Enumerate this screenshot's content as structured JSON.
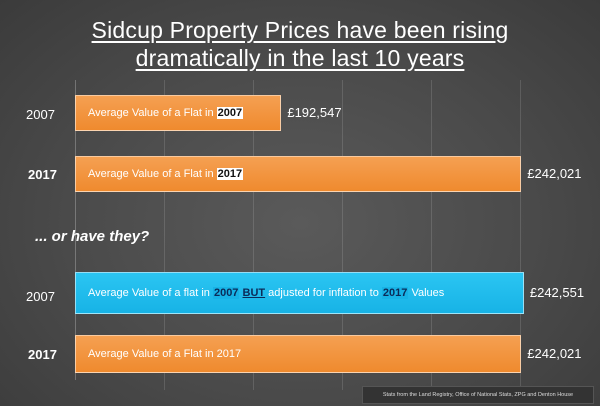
{
  "title": {
    "line1": "Sidcup Property Prices have been rising",
    "line2": "dramatically in the last 10 years"
  },
  "question": "... or have they?",
  "source_note": "Stats from the Land Registry, Office of National Stats, ZPG and Denton House",
  "colors": {
    "bar_orange": "#ef8a2e",
    "bar_blue": "#17b3e6",
    "background": "#4a4a4a"
  },
  "chart_data": {
    "type": "bar",
    "orientation": "horizontal",
    "title": "Sidcup Property Prices have been rising dramatically in the last 10 years",
    "xlabel": "",
    "ylabel": "",
    "xlim": [
      150000,
      250000
    ],
    "grid": true,
    "bars": [
      {
        "year": "2007",
        "value": 192547,
        "value_label": "£192,547",
        "label_pre": "Average Value of a Flat in ",
        "label_hl": "2007",
        "color": "orange"
      },
      {
        "year": "2017",
        "value": 242021,
        "value_label": "£242,021",
        "label_pre": "Average Value of a Flat in ",
        "label_hl": "2017",
        "color": "orange"
      },
      {
        "year": "2007",
        "value": 242551,
        "value_label": "£242,551",
        "label_pre": "Average Value of a flat in ",
        "label_hl": "2007",
        "label_but": "BUT",
        "label_mid": " adjusted for inflation to ",
        "label_hl2": "2017",
        "label_post": " Values",
        "color": "blue"
      },
      {
        "year": "2017",
        "value": 242021,
        "value_label": "£242,021",
        "label_pre": "Average Value of a Flat in 2017",
        "color": "orange"
      }
    ]
  }
}
